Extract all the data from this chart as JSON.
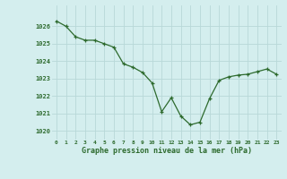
{
  "x": [
    0,
    1,
    2,
    3,
    4,
    5,
    6,
    7,
    8,
    9,
    10,
    11,
    12,
    13,
    14,
    15,
    16,
    17,
    18,
    19,
    20,
    21,
    22,
    23
  ],
  "y": [
    1026.3,
    1026.0,
    1025.4,
    1025.2,
    1025.2,
    1025.0,
    1024.8,
    1023.85,
    1023.65,
    1023.35,
    1022.75,
    1021.1,
    1021.9,
    1020.85,
    1020.35,
    1020.5,
    1021.85,
    1022.9,
    1023.1,
    1023.2,
    1023.25,
    1023.4,
    1023.55,
    1023.25
  ],
  "line_color": "#2d6a2d",
  "marker": "+",
  "marker_color": "#2d6a2d",
  "bg_color": "#d4eeee",
  "grid_color": "#b8d8d8",
  "xlabel": "Graphe pression niveau de la mer (hPa)",
  "xlabel_color": "#2d6a2d",
  "tick_color": "#2d6a2d",
  "ylim": [
    1019.5,
    1027.2
  ],
  "xlim": [
    -0.5,
    23.5
  ],
  "yticks": [
    1020,
    1021,
    1022,
    1023,
    1024,
    1025,
    1026
  ],
  "xticks": [
    0,
    1,
    2,
    3,
    4,
    5,
    6,
    7,
    8,
    9,
    10,
    11,
    12,
    13,
    14,
    15,
    16,
    17,
    18,
    19,
    20,
    21,
    22,
    23
  ]
}
